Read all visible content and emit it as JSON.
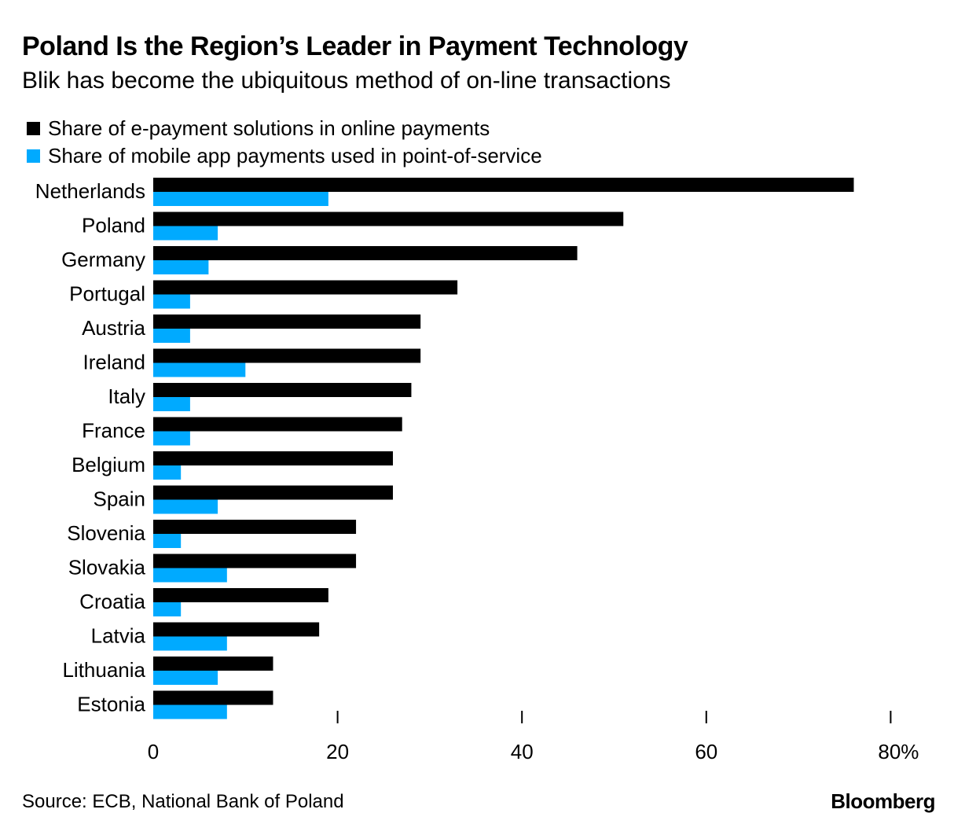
{
  "header": {
    "title": "Poland Is the Region’s Leader in Payment Technology",
    "subtitle": "Blik has become the ubiquitous method of on-line transactions"
  },
  "footer": {
    "source": "Source: ECB, National Bank of Poland",
    "brand": "Bloomberg"
  },
  "colors": {
    "series_online": "#000000",
    "series_mobile": "#00aaff"
  },
  "chart_data": {
    "type": "bar",
    "orientation": "horizontal",
    "categories": [
      "Netherlands",
      "Poland",
      "Germany",
      "Portugal",
      "Austria",
      "Ireland",
      "Italy",
      "France",
      "Belgium",
      "Spain",
      "Slovenia",
      "Slovakia",
      "Croatia",
      "Latvia",
      "Lithuania",
      "Estonia"
    ],
    "series": [
      {
        "name": "Share of e-payment solutions in online payments",
        "values": [
          76,
          51,
          46,
          33,
          29,
          29,
          28,
          27,
          26,
          26,
          22,
          22,
          19,
          18,
          13,
          13
        ]
      },
      {
        "name": "Share of mobile app payments used in point-of-service",
        "values": [
          19,
          7,
          6,
          4,
          4,
          10,
          4,
          4,
          3,
          7,
          3,
          8,
          3,
          8,
          7,
          8
        ]
      }
    ],
    "xlim": [
      0,
      80
    ],
    "xticks": [
      0,
      20,
      40,
      60,
      80
    ],
    "xtick_labels": [
      "0",
      "20",
      "40",
      "60",
      "80%"
    ],
    "legend": "top-left",
    "grid": false
  }
}
